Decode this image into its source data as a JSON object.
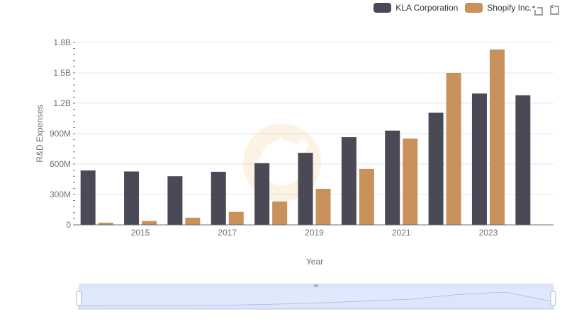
{
  "legend": {
    "items": [
      {
        "label": "KLA Corporation",
        "color": "#4a4a56"
      },
      {
        "label": "Shopify Inc.",
        "color": "#c9915b"
      }
    ]
  },
  "toolbox": {
    "icons": [
      "zoom-icon",
      "restore-icon"
    ]
  },
  "chart_data": {
    "type": "bar",
    "title": "",
    "xlabel": "Year",
    "ylabel": "R&D Expenses",
    "categories": [
      "2014",
      "2015",
      "2016",
      "2017",
      "2018",
      "2019",
      "2020",
      "2021",
      "2022",
      "2023",
      "2024"
    ],
    "x_tick_labels": [
      "2015",
      "2017",
      "2019",
      "2021",
      "2023"
    ],
    "y_tick_labels": [
      "0",
      "300M",
      "600M",
      "900M",
      "1.2B",
      "1.5B",
      "1.8B"
    ],
    "ylim": [
      0,
      1800000000
    ],
    "grid": true,
    "legend_position": "top-right",
    "series": [
      {
        "name": "KLA Corporation",
        "color": "#4a4a56",
        "values": [
          537000000,
          527000000,
          480000000,
          524000000,
          609000000,
          711000000,
          865000000,
          930000000,
          1106000000,
          1296000000,
          1279000000
        ]
      },
      {
        "name": "Shopify Inc.",
        "color": "#c9915b",
        "values": [
          22000000,
          39000000,
          71000000,
          128000000,
          231000000,
          356000000,
          552000000,
          852000000,
          1500000000,
          1730000000,
          null
        ]
      }
    ],
    "data_zoom": {
      "start": 0,
      "end": 100
    }
  }
}
